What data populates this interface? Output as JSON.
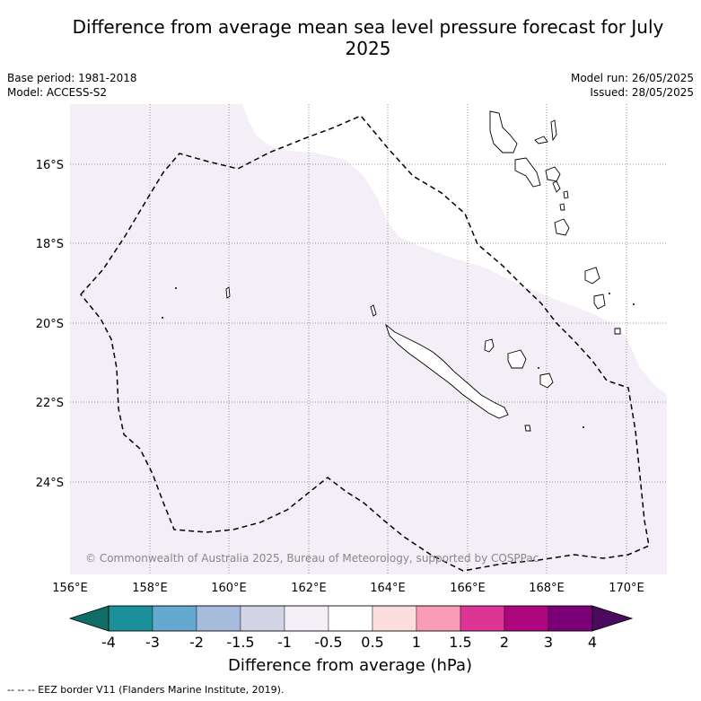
{
  "title": "Difference from average mean sea level pressure forecast for July 2025",
  "meta_left": {
    "base_period": "Base period: 1981-2018",
    "model": "Model: ACCESS-S2"
  },
  "meta_right": {
    "model_run": "Model run: 26/05/2025",
    "issued": "Issued: 28/05/2025"
  },
  "lat_labels": [
    "16°S",
    "18°S",
    "20°S",
    "22°S",
    "24°S"
  ],
  "lon_labels": [
    "156°E",
    "158°E",
    "160°E",
    "162°E",
    "164°E",
    "166°E",
    "168°E",
    "170°E"
  ],
  "copyright": "© Commonwealth of Australia 2025, Bureau of Meteorology, supported by COSPPac",
  "colorbar": {
    "ticks": [
      "-4",
      "-3",
      "-2",
      "-1.5",
      "-1",
      "-0.5",
      "0.5",
      "1",
      "1.5",
      "2",
      "3",
      "4"
    ],
    "colors": [
      "#0f6e66",
      "#1b9099",
      "#66a9d0",
      "#a7bbdc",
      "#d3d3e6",
      "#f4eef6",
      "#ffffff",
      "#fddede",
      "#f99cb8",
      "#dc3595",
      "#ae067e",
      "#7a0078",
      "#4a0a5e"
    ],
    "label": "Difference from average (hPa)"
  },
  "anomaly_fill_color": "#f4eef6",
  "legend_footer": "--  --  -- EEZ border V11 (Flanders Marine Institute, 2019)."
}
